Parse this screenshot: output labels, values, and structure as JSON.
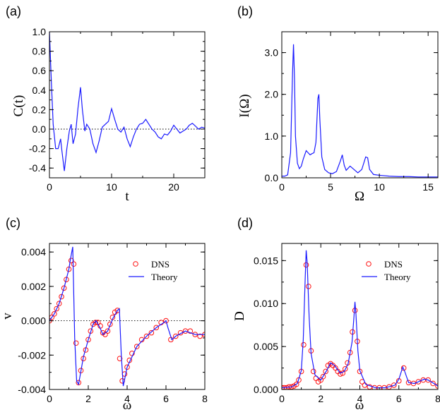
{
  "chart_data": [
    {
      "panel": "(a)",
      "type": "line",
      "xlabel": "t",
      "ylabel": "C(t)",
      "xlim": [
        0,
        25
      ],
      "ylim": [
        -0.5,
        1.0
      ],
      "xticks": [
        0,
        10,
        20
      ],
      "xtick_labels": [
        "0",
        "10",
        "20"
      ],
      "yticks": [
        -0.4,
        -0.2,
        0.0,
        0.2,
        0.4,
        0.6,
        0.8,
        1.0
      ],
      "ytick_labels": [
        "-0.4",
        "-0.2",
        "0.0",
        "0.2",
        "0.4",
        "0.6",
        "0.8",
        "1.0"
      ],
      "zero_line": true,
      "series": [
        {
          "color": "#1a1aff",
          "x": [
            0,
            0.3,
            0.6,
            1.0,
            1.4,
            1.8,
            2.0,
            2.4,
            2.8,
            3.2,
            3.5,
            3.8,
            4.2,
            4.6,
            5.0,
            5.3,
            5.7,
            6.0,
            6.5,
            7.0,
            7.5,
            8.0,
            8.5,
            9.0,
            9.5,
            10.0,
            10.5,
            11.0,
            11.5,
            12.0,
            12.5,
            13.0,
            13.5,
            14.0,
            14.5,
            15.0,
            15.5,
            16.0,
            16.5,
            17.0,
            17.5,
            18.0,
            18.5,
            19.0,
            19.5,
            20.0,
            20.5,
            21.0,
            21.5,
            22.0,
            22.5,
            23.0,
            23.5,
            24.0,
            24.5,
            25.0
          ],
          "y": [
            1.0,
            0.5,
            0.05,
            -0.2,
            -0.2,
            -0.1,
            -0.22,
            -0.43,
            -0.2,
            -0.02,
            0.05,
            -0.15,
            -0.05,
            0.22,
            0.43,
            0.2,
            -0.02,
            0.05,
            0.0,
            -0.15,
            -0.24,
            -0.12,
            0.02,
            0.05,
            0.08,
            0.21,
            0.1,
            0.0,
            -0.03,
            0.02,
            -0.1,
            -0.18,
            -0.08,
            0.0,
            0.05,
            0.06,
            0.1,
            0.05,
            0.0,
            -0.03,
            -0.08,
            -0.1,
            -0.05,
            -0.06,
            -0.02,
            0.04,
            0.0,
            -0.04,
            -0.02,
            0.0,
            0.04,
            0.06,
            0.03,
            0.0,
            0.02,
            0.01
          ]
        }
      ]
    },
    {
      "panel": "(b)",
      "type": "line",
      "xlabel": "Ω",
      "ylabel": "I(Ω)",
      "xlim": [
        0,
        16
      ],
      "ylim": [
        0,
        3.5
      ],
      "xticks": [
        0,
        5,
        10,
        15
      ],
      "xtick_labels": [
        "0",
        "5",
        "10",
        "15"
      ],
      "yticks": [
        0,
        1,
        2,
        3
      ],
      "ytick_labels": [
        "0.0",
        "1.0",
        "2.0",
        "3.0"
      ],
      "zero_line": false,
      "series": [
        {
          "color": "#1a1aff",
          "x": [
            0,
            0.3,
            0.6,
            0.9,
            1.1,
            1.2,
            1.3,
            1.4,
            1.6,
            1.8,
            2.0,
            2.2,
            2.5,
            2.7,
            2.9,
            3.1,
            3.3,
            3.5,
            3.7,
            3.8,
            3.9,
            4.1,
            4.4,
            4.8,
            5.2,
            5.6,
            6.0,
            6.2,
            6.4,
            6.6,
            7.0,
            7.4,
            7.8,
            8.2,
            8.6,
            8.8,
            9.0,
            9.4,
            10.0,
            11.0,
            12.0,
            13.0,
            14.0,
            15.0,
            16.0
          ],
          "y": [
            0.04,
            0.04,
            0.07,
            0.6,
            2.5,
            3.2,
            2.4,
            1.0,
            0.35,
            0.22,
            0.28,
            0.45,
            0.65,
            0.6,
            0.55,
            0.58,
            0.6,
            0.85,
            1.9,
            2.0,
            1.4,
            0.5,
            0.2,
            0.12,
            0.1,
            0.15,
            0.4,
            0.55,
            0.3,
            0.18,
            0.28,
            0.2,
            0.12,
            0.2,
            0.5,
            0.48,
            0.2,
            0.08,
            0.06,
            0.04,
            0.03,
            0.03,
            0.02,
            0.02,
            0.02
          ]
        }
      ]
    },
    {
      "panel": "(c)",
      "type": "line",
      "xlabel": "ω",
      "ylabel": "v",
      "xlim": [
        0,
        8
      ],
      "ylim": [
        -0.004,
        0.0045
      ],
      "xticks": [
        0,
        2,
        4,
        6,
        8
      ],
      "xtick_labels": [
        "0",
        "2",
        "4",
        "6",
        "8"
      ],
      "yticks": [
        -0.004,
        -0.002,
        0.0,
        0.002,
        0.004
      ],
      "ytick_labels": [
        "-0.004",
        "-0.002",
        "0.000",
        "0.002",
        "0.004"
      ],
      "zero_line": true,
      "legend": {
        "position": "upper-right",
        "entries": [
          "DNS",
          "Theory"
        ]
      },
      "series": [
        {
          "name": "DNS",
          "style": "markers",
          "color": "#ff1010",
          "x": [
            0.0,
            0.12,
            0.25,
            0.37,
            0.5,
            0.62,
            0.75,
            0.87,
            1.0,
            1.12,
            1.25,
            1.37,
            1.5,
            1.62,
            1.75,
            1.87,
            2.0,
            2.12,
            2.25,
            2.37,
            2.5,
            2.62,
            2.75,
            2.87,
            3.0,
            3.12,
            3.25,
            3.37,
            3.5,
            3.62,
            3.75,
            3.87,
            4.0,
            4.12,
            4.25,
            4.5,
            4.75,
            5.0,
            5.25,
            5.5,
            5.75,
            6.0,
            6.25,
            6.5,
            6.75,
            7.0,
            7.25,
            7.5,
            7.75,
            8.0
          ],
          "y": [
            0.0,
            0.0002,
            0.0004,
            0.0007,
            0.001,
            0.0014,
            0.0019,
            0.0024,
            0.003,
            0.0035,
            0.0033,
            -0.0013,
            -0.0036,
            -0.0029,
            -0.0022,
            -0.0017,
            -0.0011,
            -0.0006,
            -0.0002,
            -0.0001,
            -0.0001,
            -0.0003,
            -0.0007,
            -0.0008,
            -0.0006,
            -0.0002,
            0.0002,
            0.0005,
            0.0006,
            -0.0022,
            -0.0035,
            -0.0031,
            -0.0027,
            -0.0023,
            -0.0019,
            -0.0015,
            -0.0011,
            -0.0009,
            -0.0007,
            -0.0004,
            -0.0001,
            0.0,
            -0.0011,
            -0.0009,
            -0.0007,
            -0.0006,
            -0.0006,
            -0.0008,
            -0.0009,
            -0.0008
          ]
        },
        {
          "name": "Theory",
          "style": "line",
          "color": "#1a1aff",
          "x": [
            0.0,
            0.25,
            0.5,
            0.75,
            1.0,
            1.1,
            1.2,
            1.3,
            1.4,
            1.5,
            1.75,
            2.0,
            2.25,
            2.4,
            2.6,
            2.75,
            3.0,
            3.25,
            3.5,
            3.6,
            3.7,
            3.8,
            4.0,
            4.5,
            5.0,
            5.5,
            5.9,
            6.0,
            6.1,
            6.3,
            6.5,
            7.0,
            7.5,
            8.0
          ],
          "y": [
            0.0,
            0.0004,
            0.001,
            0.0019,
            0.003,
            0.0037,
            0.0043,
            -0.001,
            -0.0035,
            -0.0037,
            -0.0021,
            -0.0011,
            -0.0002,
            0.0,
            -0.0004,
            -0.0008,
            -0.0006,
            0.0001,
            0.0006,
            0.0007,
            -0.002,
            -0.0038,
            -0.0027,
            -0.0015,
            -0.0009,
            -0.0004,
            -0.0001,
            0.0,
            -0.0004,
            -0.0011,
            -0.0009,
            -0.0006,
            -0.0008,
            -0.0008
          ]
        }
      ]
    },
    {
      "panel": "(d)",
      "type": "line",
      "xlabel": "ω",
      "ylabel": "D",
      "xlim": [
        0,
        8
      ],
      "ylim": [
        0,
        0.017
      ],
      "xticks": [
        0,
        2,
        4,
        6,
        8
      ],
      "xtick_labels": [
        "0",
        "2",
        "4",
        "6",
        "8"
      ],
      "yticks": [
        0.0,
        0.005,
        0.01,
        0.015
      ],
      "ytick_labels": [
        "0.000",
        "0.005",
        "0.010",
        "0.015"
      ],
      "zero_line": false,
      "legend": {
        "position": "upper-right",
        "entries": [
          "DNS",
          "Theory"
        ]
      },
      "series": [
        {
          "name": "DNS",
          "style": "markers",
          "color": "#ff1010",
          "x": [
            0.0,
            0.12,
            0.25,
            0.37,
            0.5,
            0.62,
            0.75,
            0.87,
            1.0,
            1.12,
            1.25,
            1.37,
            1.5,
            1.62,
            1.75,
            1.87,
            2.0,
            2.12,
            2.25,
            2.37,
            2.5,
            2.62,
            2.75,
            2.87,
            3.0,
            3.12,
            3.25,
            3.37,
            3.5,
            3.62,
            3.75,
            3.87,
            4.0,
            4.12,
            4.25,
            4.5,
            4.75,
            5.0,
            5.25,
            5.5,
            5.75,
            6.0,
            6.25,
            6.5,
            6.75,
            7.0,
            7.25,
            7.5,
            7.75,
            8.0
          ],
          "y": [
            0.0002,
            0.0002,
            0.0002,
            0.0003,
            0.0003,
            0.0004,
            0.0006,
            0.0011,
            0.0021,
            0.0052,
            0.0145,
            0.012,
            0.0045,
            0.0021,
            0.0013,
            0.0009,
            0.0011,
            0.0015,
            0.0021,
            0.0028,
            0.003,
            0.0028,
            0.0025,
            0.0021,
            0.0018,
            0.0019,
            0.0024,
            0.0031,
            0.0043,
            0.0067,
            0.0092,
            0.0056,
            0.0021,
            0.0009,
            0.0005,
            0.0003,
            0.0002,
            0.0002,
            0.0002,
            0.0003,
            0.0005,
            0.001,
            0.0025,
            0.0008,
            0.0007,
            0.0009,
            0.0011,
            0.0011,
            0.0007,
            0.0004
          ]
        },
        {
          "name": "Theory",
          "style": "line",
          "color": "#1a1aff",
          "x": [
            0.0,
            0.5,
            0.8,
            1.0,
            1.1,
            1.2,
            1.25,
            1.3,
            1.4,
            1.5,
            1.7,
            2.0,
            2.3,
            2.5,
            2.7,
            3.0,
            3.2,
            3.4,
            3.6,
            3.7,
            3.75,
            3.8,
            3.9,
            4.0,
            4.3,
            4.8,
            5.3,
            5.8,
            6.0,
            6.2,
            6.3,
            6.5,
            6.8,
            7.0,
            7.3,
            7.5,
            7.8,
            8.0
          ],
          "y": [
            0.0002,
            0.0003,
            0.0007,
            0.0022,
            0.0058,
            0.013,
            0.0162,
            0.0148,
            0.0085,
            0.0042,
            0.0017,
            0.0011,
            0.0022,
            0.0031,
            0.0028,
            0.0019,
            0.0021,
            0.003,
            0.0055,
            0.0085,
            0.0102,
            0.0088,
            0.0045,
            0.0022,
            0.0006,
            0.0002,
            0.0002,
            0.0005,
            0.0012,
            0.0026,
            0.0021,
            0.0008,
            0.0007,
            0.0009,
            0.0012,
            0.0011,
            0.0007,
            0.0004
          ]
        }
      ]
    }
  ]
}
